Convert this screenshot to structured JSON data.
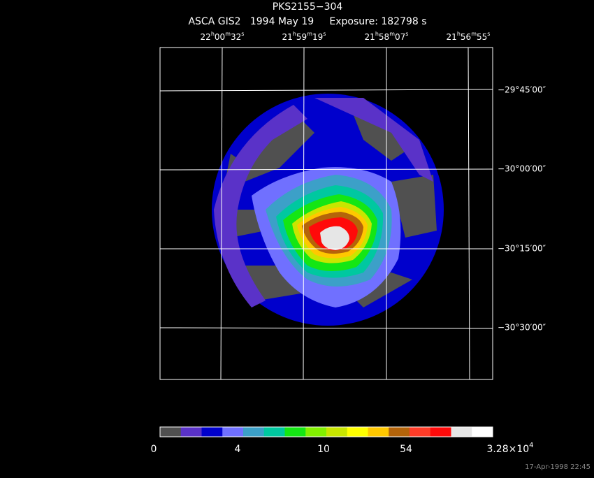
{
  "header": {
    "title": "PKS2155−304",
    "subtitle": "ASCA GIS2   1994 May 19     Exposure: 182798 s"
  },
  "ra_labels": [
    [
      "22",
      "h",
      "00",
      "m",
      "32",
      "s"
    ],
    [
      "21",
      "h",
      "59",
      "m",
      "19",
      "s"
    ],
    [
      "21",
      "h",
      "58",
      "m",
      "07",
      "s"
    ],
    [
      "21",
      "h",
      "56",
      "m",
      "55",
      "s"
    ]
  ],
  "dec_labels": [
    "−29°45′00″",
    "−30°00′00″",
    "−30°15′00″",
    "−30°30′00″"
  ],
  "colorbar": {
    "colors": [
      "#505050",
      "#5a32c8",
      "#0000cc",
      "#7070ff",
      "#3ca0c8",
      "#00c8a0",
      "#14e614",
      "#82f000",
      "#c8e600",
      "#ffff00",
      "#ffc800",
      "#b4640a",
      "#ff3c28",
      "#ff0a0a",
      "#e6e6e6",
      "#ffffff"
    ],
    "labels": [
      "0",
      "4",
      "10",
      "54"
    ],
    "max_label": {
      "mantissa": "3.28×10",
      "exponent": "4"
    }
  },
  "footer": {
    "timestamp": "17-Apr-1998 22:45"
  }
}
